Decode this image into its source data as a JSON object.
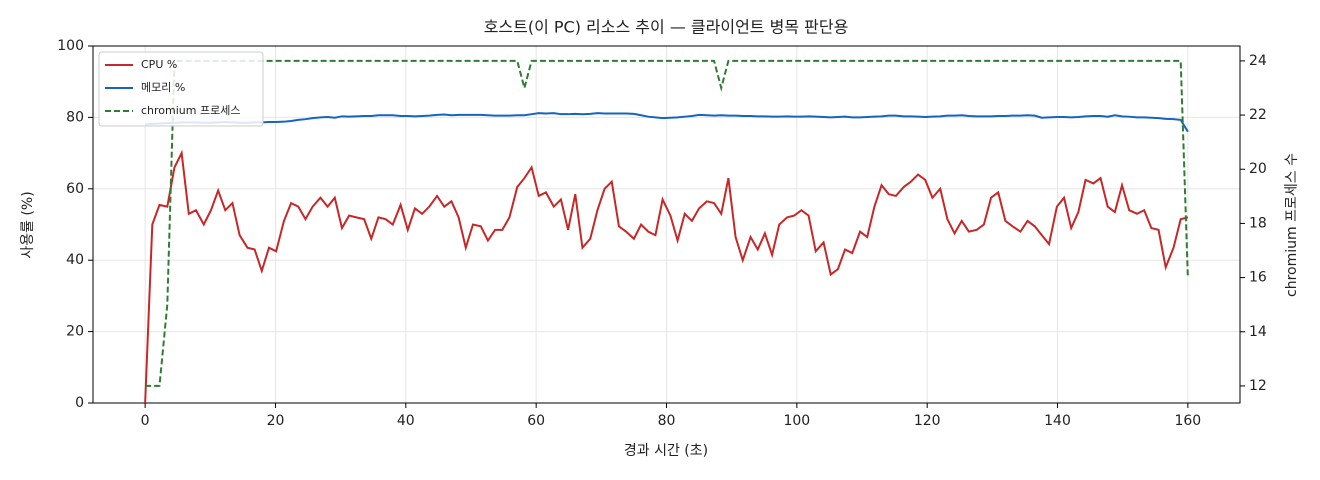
{
  "chart_data": {
    "type": "line",
    "title": "호스트(이 PC) 리소스 추이 — 클라이언트 병목 판단용",
    "xlabel": "경과 시간 (초)",
    "ylabel": "사용률 (%)",
    "y2label": "chromium 프로세스 수",
    "x": [
      0,
      1.1,
      2.2,
      3.4,
      4.5,
      5.6,
      6.7,
      7.8,
      9.0,
      10.1,
      11.2,
      12.3,
      13.4,
      14.5,
      15.7,
      16.8,
      17.9,
      19.0,
      20.1,
      21.3,
      22.4,
      23.5,
      24.6,
      25.7,
      26.9,
      28.0,
      29.1,
      30.2,
      31.3,
      32.4,
      33.6,
      34.7,
      35.8,
      36.9,
      38.0,
      39.2,
      40.3,
      41.4,
      42.5,
      43.6,
      44.8,
      45.9,
      47.0,
      48.1,
      49.2,
      50.3,
      51.5,
      52.6,
      53.7,
      54.8,
      55.9,
      57.1,
      58.2,
      59.3,
      60.4,
      61.5,
      62.7,
      63.8,
      64.9,
      66.0,
      67.1,
      68.3,
      69.4,
      70.5,
      71.6,
      72.7,
      73.8,
      75.0,
      76.1,
      77.2,
      78.3,
      79.4,
      80.6,
      81.7,
      82.8,
      83.9,
      85.0,
      86.2,
      87.3,
      88.4,
      89.5,
      90.6,
      91.7,
      92.9,
      94.0,
      95.1,
      96.2,
      97.3,
      98.5,
      99.6,
      100.7,
      101.8,
      102.9,
      104.1,
      105.2,
      106.3,
      107.4,
      108.5,
      109.7,
      110.8,
      111.9,
      113.0,
      114.1,
      115.2,
      116.4,
      117.5,
      118.6,
      119.7,
      120.8,
      122.0,
      123.1,
      124.2,
      125.3,
      126.4,
      127.6,
      128.7,
      129.8,
      130.9,
      132.0,
      133.1,
      134.3,
      135.4,
      136.5,
      137.6,
      138.7,
      139.9,
      141.0,
      142.1,
      143.2,
      144.3,
      145.5,
      146.6,
      147.7,
      148.8,
      149.9,
      151.0,
      152.2,
      153.3,
      154.4,
      155.5,
      156.6,
      157.8,
      158.9,
      160.0
    ],
    "series": [
      {
        "name": "CPU %",
        "color": "#c62828",
        "linestyle": "solid",
        "axis": "y",
        "values": [
          0,
          50,
          55.5,
          55,
          66,
          70,
          53,
          54,
          50,
          54,
          59.5,
          54,
          56,
          47,
          43.5,
          43,
          37,
          43.5,
          42.5,
          51,
          56,
          55,
          51.5,
          55,
          57.5,
          55,
          57.5,
          49,
          52.5,
          52,
          51.5,
          46,
          52,
          51.5,
          50,
          55.5,
          48.5,
          54.5,
          53,
          55,
          58,
          55,
          56.5,
          52,
          43.5,
          50,
          49.5,
          45.5,
          48.5,
          48.5,
          52,
          60.5,
          63,
          66,
          58,
          59,
          55,
          57,
          48.5,
          58.5,
          43.5,
          46,
          54,
          60,
          62,
          49.5,
          48,
          46,
          50,
          48,
          47,
          57,
          52.5,
          45.5,
          53,
          51,
          54.5,
          56.5,
          56,
          53,
          63,
          46.5,
          40,
          46.5,
          43,
          47.5,
          41.5,
          50,
          52,
          52.5,
          54,
          52.5,
          42.5,
          45,
          36,
          37.5,
          43,
          42,
          48,
          46.5,
          55,
          61,
          58.5,
          58,
          60.5,
          62,
          64,
          62.5,
          57.5,
          60,
          51.5,
          47.5,
          51,
          48,
          48.5,
          50,
          57.5,
          59,
          51,
          49.5,
          48,
          51,
          49.5,
          47,
          44.5,
          55,
          57.5,
          49,
          53.5,
          62.5,
          61.5,
          63,
          55,
          53.5,
          61,
          54,
          53,
          54,
          49,
          48.5,
          38,
          43.5,
          51.5,
          52
        ]
      },
      {
        "name": "메모리 %",
        "color": "#1565c0",
        "linestyle": "solid",
        "axis": "y",
        "values": [
          78,
          78.2,
          78.3,
          78.4,
          78.5,
          78.6,
          78.6,
          78.6,
          78.5,
          78.5,
          78.6,
          78.7,
          78.6,
          78.5,
          78.5,
          78.6,
          78.6,
          78.7,
          78.7,
          78.8,
          79,
          79.3,
          79.5,
          79.8,
          80,
          80.1,
          79.9,
          80.3,
          80.2,
          80.3,
          80.4,
          80.4,
          80.6,
          80.6,
          80.6,
          80.4,
          80.4,
          80.3,
          80.4,
          80.5,
          80.7,
          80.8,
          80.6,
          80.7,
          80.7,
          80.7,
          80.7,
          80.6,
          80.5,
          80.5,
          80.5,
          80.6,
          80.6,
          80.9,
          81.2,
          81.1,
          81.2,
          80.9,
          80.9,
          81,
          80.9,
          81,
          81.2,
          81.1,
          81.1,
          81.1,
          81.1,
          81,
          80.6,
          80.2,
          80,
          79.8,
          79.9,
          80,
          80.2,
          80.4,
          80.7,
          80.6,
          80.5,
          80.6,
          80.5,
          80.5,
          80.4,
          80.4,
          80.3,
          80.3,
          80.2,
          80.2,
          80.3,
          80.2,
          80.2,
          80.3,
          80.2,
          80.1,
          80,
          80.1,
          80.2,
          80,
          80,
          80.1,
          80.2,
          80.3,
          80.5,
          80.5,
          80.3,
          80.3,
          80.2,
          80.1,
          80.2,
          80.3,
          80.5,
          80.5,
          80.6,
          80.4,
          80.3,
          80.3,
          80.3,
          80.4,
          80.4,
          80.5,
          80.5,
          80.6,
          80.5,
          79.9,
          80,
          80.1,
          80.1,
          80,
          80.1,
          80.3,
          80.4,
          80.4,
          80.2,
          80.6,
          80.3,
          80.2,
          80,
          80,
          79.9,
          79.8,
          79.6,
          79.5,
          79.3,
          76
        ]
      },
      {
        "name": "chromium 프로세스",
        "color": "#2e7d32",
        "linestyle": "dashed",
        "axis": "y2",
        "values": [
          12,
          12,
          12,
          15,
          24,
          24,
          24,
          24,
          24,
          24,
          24,
          24,
          24,
          24,
          24,
          24,
          24,
          24,
          24,
          24,
          24,
          24,
          24,
          24,
          24,
          24,
          24,
          24,
          24,
          24,
          24,
          24,
          24,
          24,
          24,
          24,
          24,
          24,
          24,
          24,
          24,
          24,
          24,
          24,
          24,
          24,
          24,
          24,
          24,
          24,
          24,
          24,
          23,
          24,
          24,
          24,
          24,
          24,
          24,
          24,
          24,
          24,
          24,
          24,
          24,
          24,
          24,
          24,
          24,
          24,
          24,
          24,
          24,
          24,
          24,
          24,
          24,
          24,
          24,
          23,
          24,
          24,
          24,
          24,
          24,
          24,
          24,
          24,
          24,
          24,
          24,
          24,
          24,
          24,
          24,
          24,
          24,
          24,
          24,
          24,
          24,
          24,
          24,
          24,
          24,
          24,
          24,
          24,
          24,
          24,
          24,
          24,
          24,
          24,
          24,
          24,
          24,
          24,
          24,
          24,
          24,
          24,
          24,
          24,
          24,
          24,
          24,
          24,
          24,
          24,
          24,
          24,
          24,
          24,
          24,
          24,
          24,
          24,
          24,
          24,
          24,
          24,
          24,
          16
        ]
      }
    ],
    "xlim": [
      -8,
      168
    ],
    "xticks": [
      0,
      20,
      40,
      60,
      80,
      100,
      120,
      140,
      160
    ],
    "ylim": [
      0,
      100
    ],
    "yticks": [
      0,
      20,
      40,
      60,
      80,
      100
    ],
    "y2lim": [
      11.37,
      24.55
    ],
    "y2ticks": [
      12,
      14,
      16,
      18,
      20,
      22,
      24
    ],
    "grid": true,
    "legend": "upper left"
  }
}
